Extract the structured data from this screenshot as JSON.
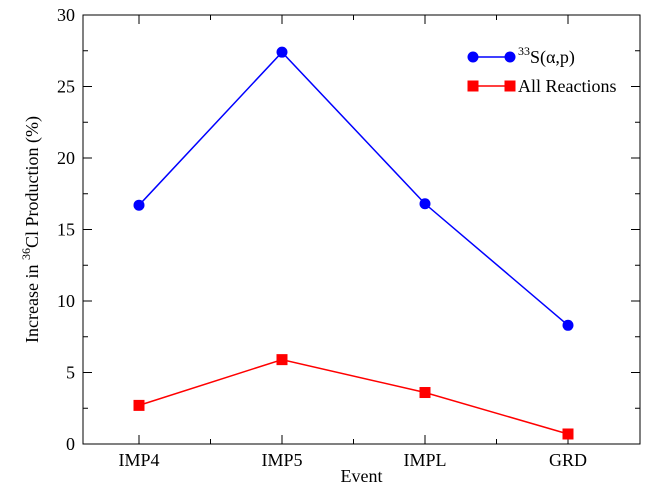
{
  "chart_data": {
    "type": "line",
    "title": "",
    "xlabel": "Event",
    "ylabel": {
      "prefix": "Increase in ",
      "superscript": "36",
      "element": "Cl",
      "suffix": " Production (%)"
    },
    "categories": [
      "IMP4",
      "IMP5",
      "IMPL",
      "GRD"
    ],
    "ylim": [
      0,
      30
    ],
    "yticks": [
      0,
      5,
      10,
      15,
      20,
      25,
      30
    ],
    "ytick_labels": [
      "0",
      "5",
      "10",
      "15",
      "20",
      "25",
      "30"
    ],
    "grid": false,
    "legend_position": "top-right",
    "series": [
      {
        "name": "33S(α,p)",
        "legend_superscript": "33",
        "legend_text": "S(α,p)",
        "color": "#0000ff",
        "marker": "circle",
        "values": [
          16.7,
          27.4,
          16.8,
          8.3
        ]
      },
      {
        "name": "All Reactions",
        "legend_text": "All Reactions",
        "color": "#ff0000",
        "marker": "square",
        "values": [
          2.7,
          5.9,
          3.6,
          0.7
        ]
      }
    ]
  }
}
